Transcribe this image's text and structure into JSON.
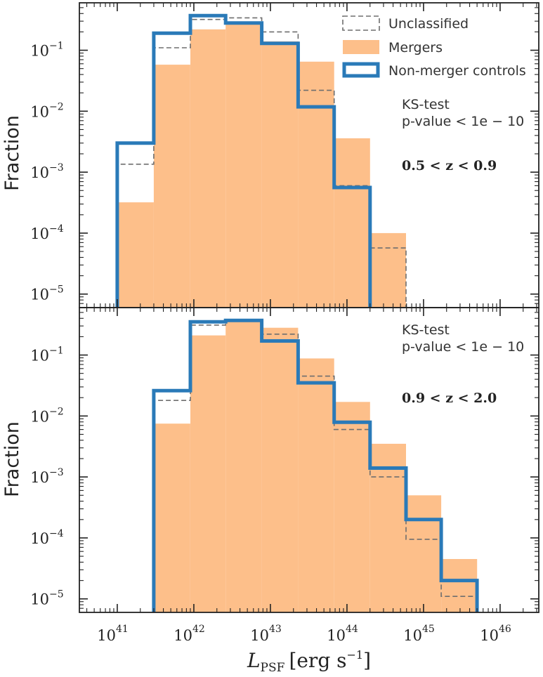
{
  "chart_data": [
    {
      "type": "bar",
      "panel": "top",
      "title": "",
      "ylabel": "Fraction",
      "xlabel": "",
      "xscale": "log",
      "yscale": "log",
      "xlim": [
        3.2e+40,
        3.2e+46
      ],
      "ylim": [
        6e-06,
        0.6
      ],
      "bin_edges": [
        1e+41,
        3e+41,
        9e+41,
        2.6e+42,
        7.7e+42,
        2.3e+43,
        6.8e+43,
        2e+44,
        5.9e+44
      ],
      "series": [
        {
          "name": "Unclassified",
          "style": "dashed-step",
          "color": "#6e6e6e",
          "values": [
            0.00135,
            0.11,
            0.32,
            0.34,
            0.2,
            0.022,
            0.0006,
            5.7e-05
          ]
        },
        {
          "name": "Mergers",
          "style": "filled",
          "color": "#fdbf8a",
          "values": [
            0.00032,
            0.058,
            0.22,
            0.28,
            0.14,
            0.065,
            0.0036,
            0.0001
          ]
        },
        {
          "name": "Non-merger controls",
          "style": "thick-step",
          "color": "#2a7ab8",
          "values": [
            0.003,
            0.19,
            0.37,
            0.28,
            0.13,
            0.0118,
            0.00056
          ]
        }
      ],
      "legend": {
        "position": "top-right",
        "entries": [
          "Unclassified",
          "Mergers",
          "Non-merger controls"
        ]
      },
      "annotations": {
        "ks_line1": "KS-test",
        "ks_line2": "p-value < 1e − 10",
        "z_range": "0.5 < z < 0.9"
      },
      "ytick_labels": [
        "10",
        "10",
        "10",
        "10",
        "10"
      ],
      "ytick_exponents": [
        "−1",
        "−2",
        "−3",
        "−4",
        "−5"
      ]
    },
    {
      "type": "bar",
      "panel": "bottom",
      "title": "",
      "ylabel": "Fraction",
      "xlabel": "L_PSF [erg s^-1]",
      "xscale": "log",
      "yscale": "log",
      "xlim": [
        3.2e+40,
        3.2e+46
      ],
      "ylim": [
        6e-06,
        0.6
      ],
      "bin_edges": [
        3e+41,
        9e+41,
        2.6e+42,
        7.7e+42,
        2.3e+43,
        6.8e+43,
        2e+44,
        5.9e+44,
        1.7e+45,
        5e+45
      ],
      "series": [
        {
          "name": "Unclassified",
          "style": "dashed-step",
          "color": "#6e6e6e",
          "values": [
            0.018,
            0.31,
            0.36,
            0.22,
            0.045,
            0.006,
            0.001,
            9.5e-05,
            1.1e-05
          ]
        },
        {
          "name": "Mergers",
          "style": "filled",
          "color": "#fdbf8a",
          "values": [
            0.0075,
            0.21,
            0.36,
            0.28,
            0.088,
            0.017,
            0.0035,
            0.0005,
            4.5e-05
          ]
        },
        {
          "name": "Non-merger controls",
          "style": "thick-step",
          "color": "#2a7ab8",
          "values": [
            0.026,
            0.35,
            0.37,
            0.17,
            0.035,
            0.0079,
            0.0014,
            0.0002,
            2e-05
          ]
        }
      ],
      "annotations": {
        "ks_line1": "KS-test",
        "ks_line2": "p-value < 1e − 10",
        "z_range": "0.9 < z < 2.0"
      },
      "ytick_labels": [
        "10",
        "10",
        "10",
        "10",
        "10"
      ],
      "ytick_exponents": [
        "−1",
        "−2",
        "−3",
        "−4",
        "−5"
      ]
    }
  ],
  "xaxis": {
    "tick_labels": [
      "10",
      "10",
      "10",
      "10",
      "10",
      "10"
    ],
    "tick_exponents": [
      "41",
      "42",
      "43",
      "44",
      "45",
      "46"
    ],
    "label_main": "L",
    "label_sub": "PSF",
    "label_units": "[erg s",
    "label_units_exp": "−1",
    "label_units_close": "]"
  }
}
